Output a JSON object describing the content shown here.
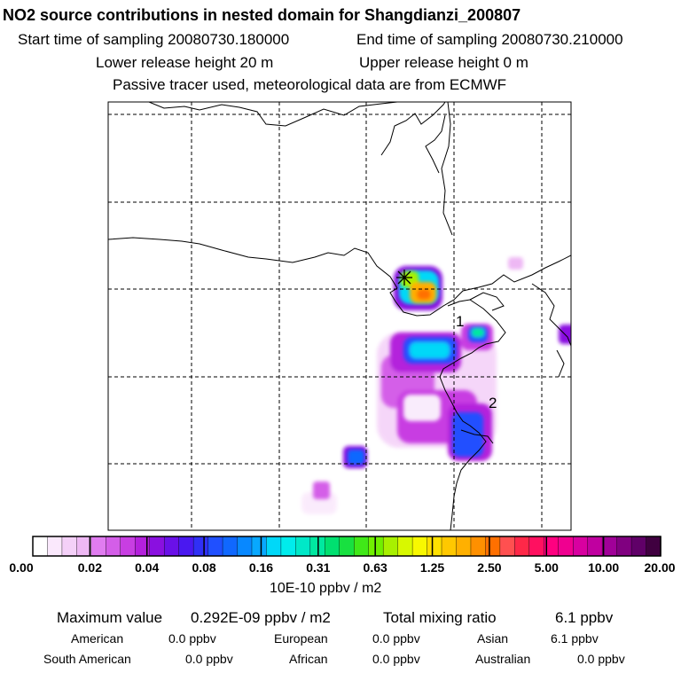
{
  "header": {
    "title": "NO2 source contributions in nested domain for Shangdianzi_200807",
    "start_time": "Start time of sampling 20080730.180000",
    "end_time": "End time of sampling 20080730.210000",
    "lower_release": "Lower release height   20 m",
    "upper_release": "Upper release height    0 m",
    "tracer_note": "Passive tracer used, meteorological data are from ECMWF"
  },
  "map": {
    "labels": [
      "1",
      "2"
    ],
    "receptor": "Shangdianzi"
  },
  "colorbar": {
    "unit": "10E-10 ppbv / m2",
    "ticks": [
      "0.00",
      "0.02",
      "0.04",
      "0.08",
      "0.16",
      "0.31",
      "0.63",
      "1.25",
      "2.50",
      "5.00",
      "10.00",
      "20.00"
    ],
    "colors": [
      "#ffffff",
      "#fae8fc",
      "#f4d0f8",
      "#eeb8f4",
      "#e07cf0",
      "#d45ee8",
      "#c83ee2",
      "#b420dc",
      "#8a10e0",
      "#6a10e8",
      "#4a18f0",
      "#3030f6",
      "#2050ff",
      "#1068ff",
      "#0888ff",
      "#08a8ff",
      "#00d8f8",
      "#00ecec",
      "#00e8c8",
      "#00e8a0",
      "#00e070",
      "#18e040",
      "#40e818",
      "#70f000",
      "#a8f000",
      "#d8f800",
      "#f8f800",
      "#ffe000",
      "#ffc800",
      "#ffb000",
      "#ff9000",
      "#ff7000",
      "#ff5050",
      "#ff2848",
      "#ff1060",
      "#ff0080",
      "#f00090",
      "#d800a0",
      "#c000a0",
      "#a00098",
      "#800080",
      "#600068",
      "#400040"
    ]
  },
  "footer": {
    "max_label": "Maximum value",
    "max_value": "0.292E-09 ppbv / m2",
    "total_label": "Total mixing ratio",
    "total_value": "6.1 ppbv",
    "regions": [
      {
        "name": "American",
        "value": "0.0 ppbv"
      },
      {
        "name": "European",
        "value": "0.0 ppbv"
      },
      {
        "name": "Asian",
        "value": "6.1 ppbv"
      },
      {
        "name": "South American",
        "value": "0.0 ppbv"
      },
      {
        "name": "African",
        "value": "0.0 ppbv"
      },
      {
        "name": "Australian",
        "value": "0.0 ppbv"
      }
    ]
  }
}
